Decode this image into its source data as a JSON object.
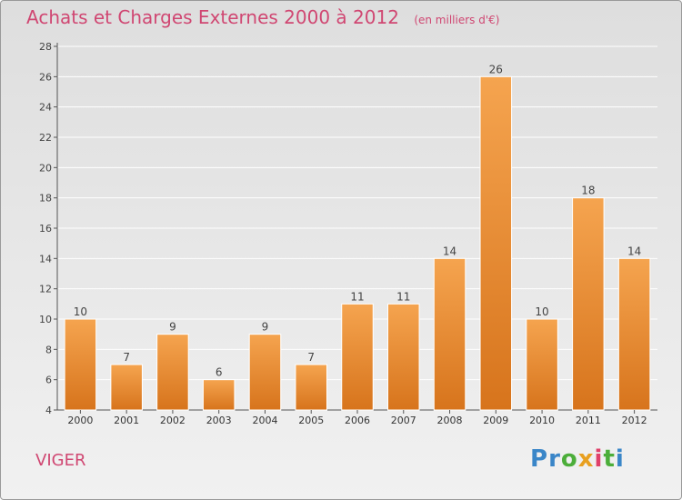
{
  "header": {
    "title": "Achats et Charges Externes 2000 à 2012",
    "subtitle": "(en milliers d'€)"
  },
  "entity_name": "VIGER",
  "brand": {
    "letters": [
      "P",
      "r",
      "o",
      "x",
      "i",
      "t",
      "i"
    ],
    "colors": [
      "#3a86c8",
      "#3a86c8",
      "#4cae3a",
      "#e8a020",
      "#e0406a",
      "#4cae3a",
      "#3a86c8"
    ]
  },
  "colors": {
    "accent": "#d04772",
    "bar_top": "#f5a44f",
    "bar_bottom": "#d7741c",
    "axis": "#555555"
  },
  "chart_data": {
    "type": "bar",
    "title": "Achats et Charges Externes 2000 à 2012",
    "subtitle": "(en milliers d'€)",
    "categories": [
      "2000",
      "2001",
      "2002",
      "2003",
      "2004",
      "2005",
      "2006",
      "2007",
      "2008",
      "2009",
      "2010",
      "2011",
      "2012"
    ],
    "values": [
      10,
      7,
      9,
      6,
      9,
      7,
      11,
      11,
      14,
      26,
      10,
      18,
      14
    ],
    "ylim": [
      4,
      28
    ],
    "yticks": [
      4,
      6,
      8,
      10,
      12,
      14,
      16,
      18,
      20,
      22,
      24,
      26,
      28
    ],
    "grid": true,
    "data_labels": true
  }
}
